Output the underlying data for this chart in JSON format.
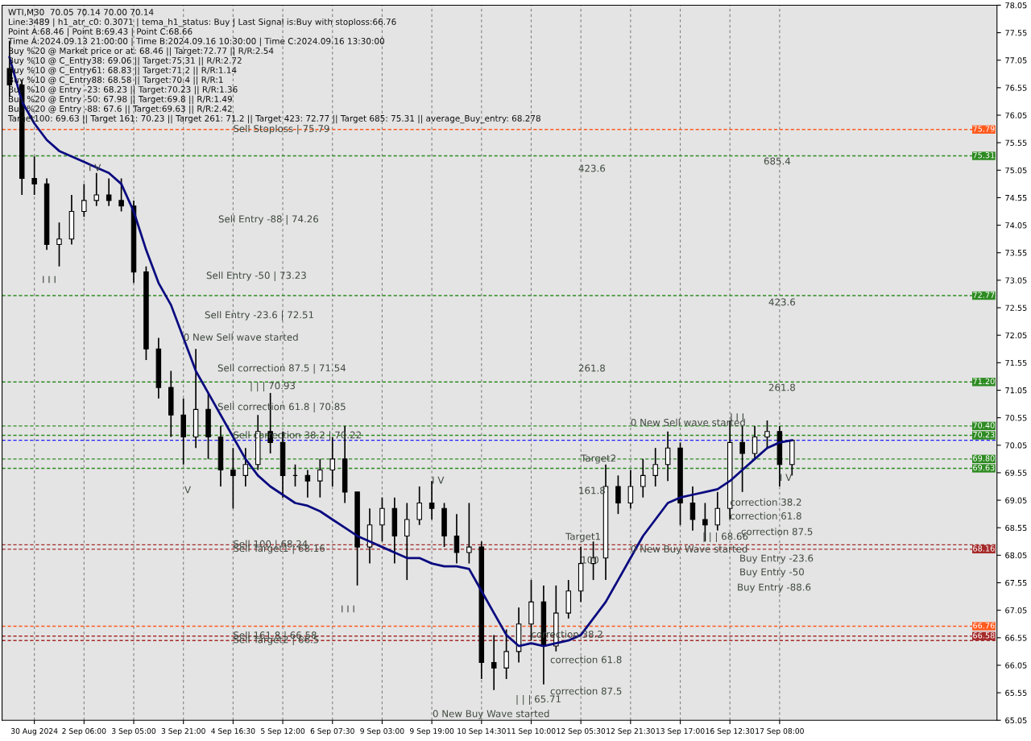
{
  "chart_data": {
    "type": "candlestick",
    "categories": [
      null,
      null,
      "30 Aug 2024",
      null,
      null,
      null,
      "2 Sep 06:00",
      null,
      null,
      null,
      "3 Sep 05:00",
      null,
      null,
      null,
      "3 Sep 21:00",
      null,
      null,
      null,
      "4 Sep 16:30",
      null,
      null,
      null,
      "5 Sep 12:00",
      null,
      null,
      null,
      "6 Sep 07:30",
      null,
      null,
      null,
      "9 Sep 03:00",
      null,
      null,
      null,
      "9 Sep 19:00",
      null,
      null,
      null,
      "10 Sep 14:30",
      null,
      null,
      null,
      "11 Sep 10:00",
      null,
      null,
      null,
      "12 Sep 05:30",
      null,
      null,
      null,
      "12 Sep 21:30",
      null,
      null,
      null,
      "13 Sep 17:00",
      null,
      null,
      null,
      "16 Sep 12:30",
      null,
      null,
      null,
      "17 Sep 08:00",
      null
    ],
    "series": [
      {
        "type": "candlestick",
        "color": "#000000",
        "ohlc": [
          [
            76.9,
            77.4,
            76.4,
            76.6
          ],
          [
            76.6,
            76.7,
            74.6,
            74.9
          ],
          [
            74.9,
            75.3,
            74.6,
            74.8
          ],
          [
            74.8,
            74.9,
            73.6,
            73.7
          ],
          [
            73.7,
            74.1,
            73.3,
            73.8
          ],
          [
            73.8,
            74.6,
            73.7,
            74.3
          ],
          [
            74.3,
            74.8,
            74.2,
            74.5
          ],
          [
            74.5,
            75.0,
            74.4,
            74.6
          ],
          [
            74.6,
            74.9,
            74.4,
            74.5
          ],
          [
            74.5,
            74.9,
            74.3,
            74.4
          ],
          [
            74.4,
            74.5,
            73.0,
            73.2
          ],
          [
            73.2,
            73.3,
            71.6,
            71.8
          ],
          [
            71.8,
            72.0,
            70.9,
            71.1
          ],
          [
            71.1,
            71.4,
            70.2,
            70.6
          ],
          [
            70.6,
            70.9,
            69.7,
            70.2
          ],
          [
            70.2,
            71.8,
            70.0,
            70.7
          ],
          [
            70.7,
            71.0,
            69.8,
            70.2
          ],
          [
            70.2,
            70.4,
            69.3,
            69.6
          ],
          [
            69.6,
            70.0,
            68.9,
            69.5
          ],
          [
            69.5,
            70.0,
            69.3,
            69.7
          ],
          [
            69.7,
            70.6,
            69.6,
            70.3
          ],
          [
            70.3,
            71.0,
            69.9,
            70.1
          ],
          [
            70.1,
            70.3,
            69.1,
            69.5
          ],
          [
            69.5,
            69.7,
            69.3,
            69.5
          ],
          [
            69.5,
            69.6,
            69.1,
            69.4
          ],
          [
            69.4,
            69.8,
            69.1,
            69.6
          ],
          [
            69.6,
            70.2,
            69.3,
            69.8
          ],
          [
            69.8,
            70.4,
            69.0,
            69.2
          ],
          [
            69.2,
            69.2,
            67.5,
            68.2
          ],
          [
            68.2,
            68.9,
            67.9,
            68.6
          ],
          [
            68.6,
            69.1,
            68.3,
            68.9
          ],
          [
            68.9,
            69.1,
            67.9,
            68.4
          ],
          [
            68.4,
            69.0,
            67.6,
            68.7
          ],
          [
            68.7,
            69.3,
            68.6,
            69.0
          ],
          [
            69.0,
            69.4,
            68.7,
            68.9
          ],
          [
            68.9,
            69.0,
            68.2,
            68.4
          ],
          [
            68.4,
            68.8,
            67.9,
            68.1
          ],
          [
            68.1,
            69.0,
            67.9,
            68.2
          ],
          [
            68.2,
            68.3,
            65.8,
            66.1
          ],
          [
            66.1,
            66.6,
            65.6,
            66.0
          ],
          [
            66.0,
            66.7,
            65.8,
            66.3
          ],
          [
            66.3,
            67.1,
            66.1,
            66.8
          ],
          [
            66.8,
            67.6,
            66.5,
            67.2
          ],
          [
            67.2,
            67.5,
            65.7,
            66.4
          ],
          [
            66.4,
            67.5,
            66.3,
            67.0
          ],
          [
            67.0,
            67.6,
            66.9,
            67.4
          ],
          [
            67.4,
            68.2,
            67.2,
            67.9
          ],
          [
            67.9,
            68.3,
            67.6,
            68.0
          ],
          [
            68.0,
            69.7,
            67.6,
            69.3
          ],
          [
            69.3,
            69.5,
            68.8,
            69.0
          ],
          [
            69.0,
            69.6,
            68.9,
            69.3
          ],
          [
            69.3,
            69.8,
            69.1,
            69.5
          ],
          [
            69.5,
            70.0,
            69.3,
            69.7
          ],
          [
            69.7,
            70.3,
            69.4,
            70.0
          ],
          [
            70.0,
            70.1,
            68.6,
            69.0
          ],
          [
            69.0,
            69.3,
            68.5,
            68.7
          ],
          [
            68.7,
            69.0,
            68.3,
            68.6
          ],
          [
            68.6,
            69.2,
            68.5,
            68.9
          ],
          [
            68.9,
            70.5,
            68.7,
            70.1
          ],
          [
            70.1,
            70.4,
            69.2,
            69.9
          ],
          [
            69.9,
            70.4,
            69.8,
            70.2
          ],
          [
            70.2,
            70.5,
            70.0,
            70.3
          ],
          [
            70.3,
            70.4,
            69.3,
            69.7
          ],
          [
            69.7,
            70.14,
            69.5,
            70.14
          ]
        ]
      },
      {
        "type": "line",
        "color": "#0a0a80",
        "values": [
          77.1,
          76.3,
          75.9,
          75.6,
          75.4,
          75.3,
          75.2,
          75.1,
          75.0,
          74.8,
          74.3,
          73.6,
          73.0,
          72.6,
          72.0,
          71.4,
          71.0,
          70.6,
          70.2,
          69.8,
          69.5,
          69.3,
          69.15,
          69.0,
          68.95,
          68.85,
          68.7,
          68.55,
          68.4,
          68.3,
          68.2,
          68.1,
          68.0,
          68.0,
          67.9,
          67.85,
          67.85,
          67.8,
          67.4,
          67.0,
          66.6,
          66.4,
          66.45,
          66.4,
          66.45,
          66.5,
          66.6,
          66.9,
          67.2,
          67.6,
          68.0,
          68.4,
          68.7,
          69.0,
          69.1,
          69.15,
          69.2,
          69.25,
          69.4,
          69.6,
          69.8,
          70.0,
          70.1,
          70.14
        ]
      }
    ],
    "ylim": [
      65.05,
      78.05
    ],
    "yticks": [
      65.05,
      65.55,
      66.05,
      66.55,
      67.05,
      67.55,
      68.05,
      68.55,
      69.05,
      69.55,
      70.05,
      70.55,
      71.05,
      71.55,
      72.05,
      72.55,
      73.05,
      73.55,
      74.05,
      74.55,
      75.05,
      75.55,
      76.05,
      76.55,
      77.05,
      77.55,
      78.05
    ],
    "grid": "x",
    "ref_lines": [
      {
        "axis": "y",
        "value": 75.79,
        "label": "75.79",
        "color": "#ff5a1e",
        "line_style": "dashed"
      },
      {
        "axis": "y",
        "value": 75.31,
        "label": "75.31",
        "color": "#2e8b22",
        "line_style": "dashed"
      },
      {
        "axis": "y",
        "value": 72.77,
        "label": "72.77",
        "color": "#2e8b22",
        "line_style": "dashed"
      },
      {
        "axis": "y",
        "value": 71.2,
        "label": "71.20",
        "color": "#2e8b22",
        "line_style": "dashed"
      },
      {
        "axis": "y",
        "value": 70.4,
        "label": "70.40",
        "color": "#2e8b22",
        "line_style": "dashed"
      },
      {
        "axis": "y",
        "value": 70.23,
        "label": "70.23",
        "color": "#2e8b22",
        "line_style": "dashed"
      },
      {
        "axis": "y",
        "value": 70.14,
        "label": null,
        "color": "#1a1aff",
        "line_style": "dashed"
      },
      {
        "axis": "y",
        "value": 69.8,
        "label": "69.80",
        "color": "#2e8b22",
        "line_style": "dashed"
      },
      {
        "axis": "y",
        "value": 69.63,
        "label": "69.63",
        "color": "#2e8b22",
        "line_style": "dashed"
      },
      {
        "axis": "y",
        "value": 68.24,
        "label": null,
        "color": "#a52a2a",
        "line_style": "dashed"
      },
      {
        "axis": "y",
        "value": 68.16,
        "label": "68.16",
        "color": "#a52a2a",
        "line_style": "dashed"
      },
      {
        "axis": "y",
        "value": 66.76,
        "label": "66.76",
        "color": "#ff5a1e",
        "line_style": "dashed"
      },
      {
        "axis": "y",
        "value": 66.58,
        "label": "66.58",
        "color": "#a52a2a",
        "line_style": "dashed"
      },
      {
        "axis": "y",
        "value": 66.5,
        "label": null,
        "color": "#a52a2a",
        "line_style": "dashed"
      }
    ],
    "annotations": [
      "WTI,M30  70.05 70.14 70.00 70.14",
      "Line:3489 | h1_atr_c0: 0.3071 | tema_h1_status: Buy | Last Signal is:Buy with stoploss:66.76",
      "Point A:68.46 | Point B:69.43 | Point C:68.66",
      "Time A:2024.09.13 21:00:00 | Time B:2024.09.16 10:30:00 | Time C:2024.09.16 13:30:00",
      "Buy %20 @ Market price or at: 68.46 || Target:72.77 || R/R:2.54",
      "Buy %10 @ C_Entry38: 69.06 || Target:75.31 || R/R:2.72",
      "Buy %10 @ C_Entry61: 68.83 || Target:71.2 || R/R:1.14",
      "Buy %10 @ C_Entry88: 68.58 || Target:70.4 || R/R:1",
      "Buy %10 @ Entry -23: 68.23 || Target:70.23 || R/R:1.36",
      "Buy %20 @ Entry -50: 67.98 || Target:69.8 || R/R:1.49",
      "Buy %20 @ Entry -88: 67.6 || Target:69.63 || R/R:2.42",
      "Target100: 69.63 || Target 161: 70.23 || Target 261: 71.2 || Target 423: 72.77 || Target 685: 75.31 || average_Buy_entry: 68.278",
      "Sell Entry -88 | 74.26",
      "Sell Entry -50 | 73.23",
      "Sell Entry -23.6 | 72.51",
      "Sell correction 87.5 | 71.54",
      "| | | 70.93",
      "Sell correction 61.8 | 70.85",
      "I V",
      "I I I",
      "V",
      "I I I",
      "423.6",
      "261.8",
      "161.8",
      "Target1",
      "correction 61.8",
      "correction 87.5",
      "| | | 65.71",
      "0 New Buy Wave started",
      "685.4",
      "423.6",
      "261.8",
      "correction 87.5",
      "| | | 68.66",
      "Buy Entry -23.6",
      "Buy Entry -50",
      "Buy Entry -88.6",
      {
        "text": "Sell Stoploss | 75.79",
        "x": "4 Sep 16:30",
        "y": 75.79
      },
      {
        "text": "0 New Sell wave started",
        "x": "3 Sep 21:00",
        "y": 72.0
      },
      {
        "text": "Sell correction 38.2 | 70.22",
        "x": "4 Sep 16:30",
        "y": 70.22
      },
      {
        "text": "Sell 100 | 68.24",
        "x": "4 Sep 16:30",
        "y": 68.24
      },
      {
        "text": "Sell Target1 | 68.16",
        "x": "4 Sep 16:30",
        "y": 68.16
      },
      {
        "text": "Sell 161.8 | 66.58",
        "x": "4 Sep 16:30",
        "y": 66.58
      },
      {
        "text": "Sell Target2 | 66.5",
        "x": "4 Sep 16:30",
        "y": 66.5
      },
      {
        "text": "I V",
        "x": "9 Sep 19:00",
        "y": 69.4
      },
      {
        "text": "Target2",
        "x": "12 Sep 05:30",
        "y": 69.8
      },
      {
        "text": "100",
        "x": "12 Sep 05:30",
        "y": 67.95
      },
      {
        "text": "0 New Sell wave started",
        "x": "12 Sep 21:30",
        "y": 70.45
      },
      {
        "text": "correction 38.2",
        "x": "11 Sep 10:00",
        "y": 66.6
      },
      {
        "text": "I I I",
        "x": "16 Sep 12:30",
        "y": 70.55
      },
      {
        "text": "I V",
        "x": "17 Sep 08:00",
        "y": 69.45
      },
      {
        "text": "correction 38.2",
        "x": "16 Sep 12:30",
        "y": 69.0
      },
      {
        "text": "correction 61.8",
        "x": "16 Sep 12:30",
        "y": 68.75
      },
      {
        "text": "0 New Buy Wave started",
        "x": "12 Sep 21:30",
        "y": 68.15
      }
    ]
  }
}
